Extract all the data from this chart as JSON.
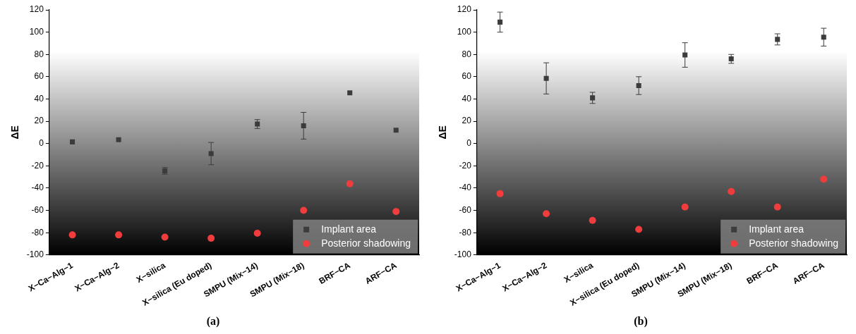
{
  "chart_data": [
    {
      "type": "scatter",
      "title": "(a)",
      "ylabel": "ΔE",
      "categories": [
        "X−Ca−Alg−1",
        "X−Ca−Alg−2",
        "X−silica",
        "X−silica (Eu doped)",
        "SMPU (Mix−14)",
        "SMPU (Mix−18)",
        "BRF−CA",
        "ARF−CA"
      ],
      "ylim": [
        -100,
        120
      ],
      "yticks": [
        -100,
        -80,
        -60,
        -40,
        -20,
        0,
        20,
        40,
        60,
        80,
        100,
        120
      ],
      "grid": false,
      "legend": "bottom right",
      "series": [
        {
          "name": "Implant area",
          "color": "#3c3c3c",
          "marker": "square",
          "values": [
            1.5,
            3.5,
            -24.5,
            -9,
            17.5,
            16,
            45.5,
            12
          ],
          "errors": [
            null,
            null,
            3,
            10,
            4,
            12,
            null,
            null
          ]
        },
        {
          "name": "Posterior shadowing",
          "color": "#f03c3c",
          "marker": "circle",
          "values": [
            -82,
            -82,
            -84,
            -85,
            -80.5,
            -60,
            -36,
            -61
          ]
        }
      ]
    },
    {
      "type": "scatter",
      "title": "(b)",
      "ylabel": "ΔE",
      "categories": [
        "X−Ca−Alg−1",
        "X−Ca−Alg−2",
        "X−silica",
        "X−silica (Eu doped)",
        "SMPU (Mix−14)",
        "SMPU (Mix−18)",
        "BRF−CA",
        "ARF−CA"
      ],
      "ylim": [
        -100,
        120
      ],
      "yticks": [
        -100,
        -80,
        -60,
        -40,
        -20,
        0,
        20,
        40,
        60,
        80,
        100,
        120
      ],
      "grid": false,
      "legend": "bottom right",
      "series": [
        {
          "name": "Implant area",
          "color": "#3c3c3c",
          "marker": "square",
          "values": [
            109,
            58.5,
            41,
            52,
            79.5,
            76,
            93.5,
            95.5
          ],
          "errors": [
            9,
            14,
            5,
            8,
            11,
            4,
            5,
            8
          ]
        },
        {
          "name": "Posterior shadowing",
          "color": "#f03c3c",
          "marker": "circle",
          "values": [
            -45,
            -63,
            -69,
            -77,
            -57,
            -43,
            -57,
            -32
          ]
        }
      ]
    }
  ]
}
